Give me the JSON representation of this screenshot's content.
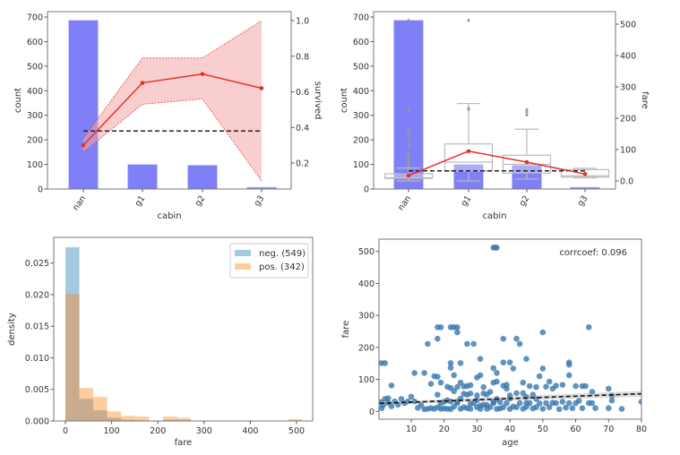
{
  "chart_data": [
    {
      "type": "bar",
      "xlabel": "cabin",
      "ylabel": "count",
      "ylabel_right": "survived",
      "categories": [
        "nan",
        "g1",
        "g2",
        "g3"
      ],
      "values": [
        687,
        100,
        97,
        7
      ],
      "ylim": [
        0,
        720
      ],
      "yticks": [
        0,
        100,
        200,
        300,
        400,
        500,
        600,
        700
      ],
      "ylim_right": [
        0.05,
        1.05
      ],
      "yticks_right": [
        0.2,
        0.4,
        0.6,
        0.8,
        1.0
      ],
      "line": {
        "values": [
          0.3,
          0.65,
          0.7,
          0.62
        ],
        "ci_low": [
          0.26,
          0.53,
          0.56,
          0.1
        ],
        "ci_high": [
          0.34,
          0.79,
          0.79,
          1.0
        ]
      },
      "mean_line": 0.38,
      "colors": {
        "bar": "#7f7ff7",
        "line": "#e8302a",
        "ci": "#f4a6a6",
        "mean": "#222222"
      },
      "grid": false
    },
    {
      "type": "bar",
      "xlabel": "cabin",
      "ylabel": "count",
      "ylabel_right": "fare",
      "categories": [
        "nan",
        "g1",
        "g2",
        "g3"
      ],
      "values": [
        687,
        100,
        97,
        7
      ],
      "ylim": [
        0,
        720
      ],
      "yticks": [
        0,
        100,
        200,
        300,
        400,
        500,
        600,
        700
      ],
      "ylim_right": [
        -30,
        530
      ],
      "yticks_right": [
        0,
        100,
        200,
        300,
        400,
        500
      ],
      "boxes": [
        {
          "low": 0,
          "q1": 8,
          "median": 10,
          "q3": 23,
          "high": 41,
          "outliers": [
            512,
            227,
            164,
            153,
            135,
            120,
            113,
            90,
            83,
            78,
            73,
            69,
            60,
            56,
            52,
            47
          ]
        },
        {
          "low": 0,
          "q1": 31,
          "median": 60,
          "q3": 118,
          "high": 247,
          "outliers": [
            228,
            232,
            512
          ]
        },
        {
          "low": 6,
          "q1": 25,
          "median": 53,
          "q3": 82,
          "high": 165,
          "outliers": [
            211,
            220,
            227
          ]
        },
        {
          "low": 10,
          "q1": 12,
          "median": 16,
          "q3": 36,
          "high": 40,
          "outliers": []
        }
      ],
      "line": {
        "values": [
          17,
          95,
          60,
          22
        ]
      },
      "mean_line": 32,
      "colors": {
        "bar": "#7f7ff7",
        "line": "#e8302a",
        "box": "#bbbbbb",
        "mean": "#222222"
      },
      "grid": false
    },
    {
      "type": "histogram",
      "xlabel": "fare",
      "ylabel": "density",
      "xlim": [
        -25,
        538
      ],
      "xticks": [
        0,
        100,
        200,
        300,
        400,
        500
      ],
      "ylim": [
        0,
        0.0288
      ],
      "yticks": [
        0.0,
        0.005,
        0.01,
        0.015,
        0.02,
        0.025
      ],
      "ytick_labels": [
        "0.000",
        "0.005",
        "0.010",
        "0.015",
        "0.020",
        "0.025"
      ],
      "bin_width": 30.14,
      "series": [
        {
          "name": "neg. (549)",
          "color": "#1f77b4",
          "values": [
            0.0275,
            0.0035,
            0.0017,
            0.0005,
            0.0002,
            0.0001,
            0,
            0.0002,
            0.0002,
            0,
            0,
            0,
            0,
            0,
            0,
            0,
            0
          ]
        },
        {
          "name": "pos. (342)",
          "color": "#ff7f0e",
          "values": [
            0.0201,
            0.0052,
            0.0038,
            0.0015,
            0.0008,
            0.0007,
            0,
            0.0007,
            0.0005,
            0,
            0,
            0,
            0,
            0,
            0,
            0,
            0.0003
          ]
        }
      ],
      "legend": "top-right",
      "grid": false
    },
    {
      "type": "scatter",
      "xlabel": "age",
      "ylabel": "fare",
      "xlim": [
        0.42,
        80
      ],
      "xticks": [
        10,
        20,
        30,
        40,
        50,
        60,
        70,
        80
      ],
      "ylim": [
        -25,
        530
      ],
      "yticks": [
        0,
        100,
        200,
        300,
        400,
        500
      ],
      "annotation": "corrcoef: 0.096",
      "regression": {
        "intercept": 25,
        "slope": 0.375
      },
      "color": "#3a78b0",
      "grid": false,
      "points": [
        [
          35,
          512
        ],
        [
          36,
          512
        ],
        [
          35.5,
          512
        ],
        [
          18,
          263
        ],
        [
          19,
          263
        ],
        [
          22,
          263
        ],
        [
          23,
          263
        ],
        [
          24,
          263
        ],
        [
          64,
          263
        ],
        [
          24,
          247
        ],
        [
          50,
          247
        ],
        [
          18,
          227
        ],
        [
          38,
          227
        ],
        [
          42,
          227
        ],
        [
          15,
          211
        ],
        [
          27,
          211
        ],
        [
          29,
          211
        ],
        [
          43,
          211
        ],
        [
          2,
          151
        ],
        [
          0.9,
          151
        ],
        [
          22,
          151
        ],
        [
          25,
          151
        ],
        [
          38,
          153
        ],
        [
          40,
          153
        ],
        [
          58,
          153
        ],
        [
          58,
          146
        ],
        [
          31,
          164
        ],
        [
          45,
          164
        ],
        [
          22,
          136
        ],
        [
          35,
          135
        ],
        [
          41,
          134
        ],
        [
          50,
          134
        ],
        [
          11,
          120
        ],
        [
          14,
          120
        ],
        [
          36,
          120
        ],
        [
          58,
          113
        ],
        [
          17,
          110
        ],
        [
          18,
          108
        ],
        [
          23,
          113
        ],
        [
          4,
          81
        ],
        [
          16,
          86
        ],
        [
          19,
          90
        ],
        [
          25,
          90
        ],
        [
          30,
          106
        ],
        [
          36,
          93
        ],
        [
          39,
          83
        ],
        [
          44,
          90
        ],
        [
          49,
          110
        ],
        [
          52,
          93
        ],
        [
          54,
          80
        ],
        [
          56,
          83
        ],
        [
          60,
          79
        ],
        [
          62,
          79
        ],
        [
          63,
          79
        ],
        [
          65,
          61
        ],
        [
          70,
          71
        ],
        [
          71,
          49
        ],
        [
          74,
          7.8
        ],
        [
          80,
          30
        ],
        [
          71,
          34
        ],
        [
          66,
          10
        ],
        [
          61,
          33
        ],
        [
          64,
          26
        ],
        [
          57,
          12
        ],
        [
          55,
          7
        ],
        [
          45,
          26
        ],
        [
          47,
          52
        ],
        [
          48,
          39
        ],
        [
          33,
          53
        ],
        [
          28,
          56
        ],
        [
          21,
          77
        ],
        [
          22,
          73
        ],
        [
          24,
          76
        ],
        [
          27,
          79
        ],
        [
          32,
          76
        ],
        [
          38,
          80
        ],
        [
          46,
          79
        ],
        [
          51,
          77
        ],
        [
          62,
          10
        ],
        [
          70,
          10
        ],
        [
          1,
          10
        ],
        [
          2,
          39
        ],
        [
          3,
          27
        ],
        [
          4,
          16
        ],
        [
          5,
          31
        ],
        [
          6,
          21
        ],
        [
          8,
          26
        ],
        [
          9,
          31
        ],
        [
          10,
          46
        ],
        [
          12,
          11
        ],
        [
          13,
          20
        ],
        [
          14,
          7
        ],
        [
          15,
          8
        ],
        [
          16,
          10
        ],
        [
          17,
          7.9
        ],
        [
          18,
          13
        ],
        [
          19,
          7.9
        ],
        [
          20,
          9
        ],
        [
          21,
          8
        ],
        [
          22,
          7.2
        ],
        [
          23,
          15
        ],
        [
          24,
          26
        ],
        [
          25,
          7.9
        ],
        [
          26,
          13
        ],
        [
          27,
          10
        ],
        [
          28,
          7.9
        ],
        [
          29,
          26
        ],
        [
          30,
          13
        ],
        [
          31,
          7.8
        ],
        [
          32,
          56
        ],
        [
          33,
          8
        ],
        [
          34,
          13
        ],
        [
          35,
          26
        ],
        [
          36,
          7.8
        ],
        [
          37,
          9
        ],
        [
          38,
          13
        ],
        [
          39,
          26
        ],
        [
          40,
          7.8
        ],
        [
          41,
          15
        ],
        [
          42,
          13
        ],
        [
          43,
          26
        ],
        [
          44,
          7.9
        ],
        [
          45,
          14
        ],
        [
          46,
          26
        ],
        [
          47,
          9
        ],
        [
          48,
          13
        ],
        [
          49,
          25
        ],
        [
          50,
          8
        ],
        [
          51,
          26
        ],
        [
          52,
          13
        ],
        [
          53,
          27
        ],
        [
          54,
          26
        ],
        [
          56,
          30
        ],
        [
          58,
          26
        ],
        [
          59,
          10
        ],
        [
          60,
          26
        ],
        [
          65,
          26
        ],
        [
          20,
          30
        ],
        [
          25,
          40
        ],
        [
          30,
          35
        ],
        [
          35,
          30
        ],
        [
          40,
          40
        ],
        [
          45,
          45
        ],
        [
          28,
          24
        ],
        [
          32,
          21
        ],
        [
          18,
          52
        ],
        [
          26,
          55
        ],
        [
          30,
          50
        ],
        [
          40,
          50
        ],
        [
          42,
          57
        ],
        [
          24,
          30
        ],
        [
          19,
          26
        ],
        [
          22,
          31
        ],
        [
          36,
          39
        ],
        [
          33,
          20
        ],
        [
          37,
          29
        ],
        [
          31,
          18
        ],
        [
          0.8,
          29
        ],
        [
          1.5,
          20
        ],
        [
          3,
          41
        ],
        [
          7,
          39
        ],
        [
          11,
          31
        ],
        [
          21,
          35
        ],
        [
          23,
          63
        ],
        [
          27,
          52
        ],
        [
          34,
          61
        ],
        [
          39,
          71
        ],
        [
          44,
          57
        ],
        [
          48,
          76
        ],
        [
          53,
          71
        ],
        [
          28,
          82
        ],
        [
          26,
          78
        ],
        [
          31,
          113
        ],
        [
          35,
          90
        ]
      ]
    }
  ]
}
